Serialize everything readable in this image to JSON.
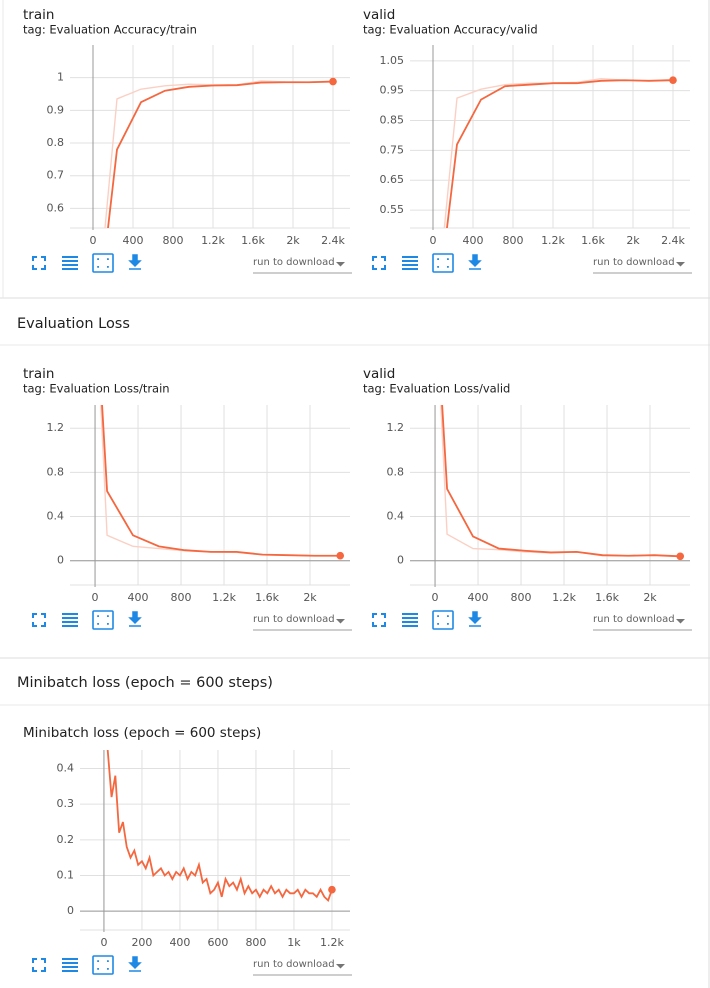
{
  "sections": [
    {
      "title": "Evaluation Loss"
    },
    {
      "title": "Minibatch loss (epoch = 600 steps)"
    }
  ],
  "run_selector_label": "run to download",
  "chart_data": [
    {
      "type": "line",
      "title": "train",
      "subtitle": "tag: Evaluation Accuracy/train",
      "x": [
        0,
        240,
        480,
        720,
        960,
        1200,
        1440,
        1680,
        1920,
        2160,
        2400
      ],
      "series": [
        {
          "color": "#fbd0c4",
          "values": [
            0.145,
            0.935,
            0.965,
            0.975,
            0.98,
            0.978,
            0.978,
            0.99,
            0.987,
            0.986,
            0.99
          ]
        },
        {
          "color": "#f4673f",
          "values": [
            0.14,
            0.78,
            0.925,
            0.96,
            0.972,
            0.976,
            0.977,
            0.985,
            0.986,
            0.986,
            0.988
          ]
        }
      ],
      "xlim": [
        -230,
        2570
      ],
      "ylim": [
        0.54,
        1.1
      ],
      "xticks": [
        0,
        400,
        800,
        {
          "value": 1200,
          "label": "1.2k"
        },
        {
          "value": 1600,
          "label": "1.6k"
        },
        {
          "value": 2000,
          "label": "2k"
        },
        {
          "value": 2400,
          "label": "2.4k"
        }
      ],
      "yticks": [
        0.6,
        0.7,
        0.8,
        0.9,
        1
      ],
      "grid": true
    },
    {
      "type": "line",
      "title": "valid",
      "subtitle": "tag: Evaluation Accuracy/valid",
      "x": [
        0,
        240,
        480,
        720,
        960,
        1200,
        1440,
        1680,
        1920,
        2160,
        2400
      ],
      "series": [
        {
          "color": "#fbd0c4",
          "values": [
            0.1,
            0.925,
            0.955,
            0.97,
            0.975,
            0.975,
            0.978,
            0.99,
            0.985,
            0.983,
            0.988
          ]
        },
        {
          "color": "#f4673f",
          "values": [
            0.1,
            0.77,
            0.92,
            0.965,
            0.97,
            0.975,
            0.975,
            0.983,
            0.985,
            0.983,
            0.985
          ]
        }
      ],
      "xlim": [
        -230,
        2570
      ],
      "ylim": [
        0.49,
        1.103
      ],
      "xticks": [
        0,
        400,
        800,
        {
          "value": 1200,
          "label": "1.2k"
        },
        {
          "value": 1600,
          "label": "1.6k"
        },
        {
          "value": 2000,
          "label": "2k"
        },
        {
          "value": 2400,
          "label": "2.4k"
        }
      ],
      "yticks": [
        0.55,
        0.65,
        0.75,
        0.85,
        0.95,
        1.05
      ],
      "grid": true
    },
    {
      "type": "line",
      "title": "train",
      "subtitle": "tag: Evaluation Loss/train",
      "x": [
        0,
        112,
        353,
        594,
        835,
        1076,
        1317,
        1558,
        1799,
        2040,
        2281
      ],
      "series": [
        {
          "color": "#fbd0c4",
          "values": [
            2.5,
            0.23,
            0.13,
            0.11,
            0.09,
            0.08,
            0.075,
            0.055,
            0.05,
            0.045,
            0.045
          ]
        },
        {
          "color": "#f4673f",
          "values": [
            2.5,
            0.63,
            0.23,
            0.13,
            0.095,
            0.08,
            0.08,
            0.055,
            0.05,
            0.045,
            0.045
          ]
        }
      ],
      "xlim": [
        -233,
        2372
      ],
      "ylim": [
        -0.22,
        1.41
      ],
      "xticks": [
        0,
        400,
        800,
        {
          "value": 1200,
          "label": "1.2k"
        },
        {
          "value": 1600,
          "label": "1.6k"
        },
        {
          "value": 2000,
          "label": "2k"
        }
      ],
      "yticks": [
        0,
        0.4,
        0.8,
        1.2
      ],
      "grid": true
    },
    {
      "type": "line",
      "title": "valid",
      "subtitle": "tag: Evaluation Loss/valid",
      "x": [
        0,
        112,
        353,
        594,
        835,
        1076,
        1317,
        1558,
        1799,
        2040,
        2281
      ],
      "series": [
        {
          "color": "#fbd0c4",
          "values": [
            2.5,
            0.24,
            0.11,
            0.1,
            0.08,
            0.07,
            0.08,
            0.045,
            0.045,
            0.05,
            0.04
          ]
        },
        {
          "color": "#f4673f",
          "values": [
            2.5,
            0.65,
            0.22,
            0.11,
            0.09,
            0.075,
            0.08,
            0.05,
            0.045,
            0.05,
            0.04
          ]
        }
      ],
      "xlim": [
        -233,
        2372
      ],
      "ylim": [
        -0.22,
        1.41
      ],
      "xticks": [
        0,
        400,
        800,
        {
          "value": 1200,
          "label": "1.2k"
        },
        {
          "value": 1600,
          "label": "1.6k"
        },
        {
          "value": 2000,
          "label": "2k"
        }
      ],
      "yticks": [
        0,
        0.4,
        0.8,
        1.2
      ],
      "grid": true
    },
    {
      "type": "line",
      "title": "Minibatch loss (epoch = 600 steps)",
      "x": [
        0,
        20,
        40,
        60,
        80,
        100,
        120,
        140,
        160,
        180,
        200,
        220,
        240,
        260,
        280,
        300,
        320,
        340,
        360,
        380,
        400,
        420,
        440,
        460,
        480,
        500,
        520,
        540,
        560,
        580,
        600,
        620,
        640,
        660,
        680,
        700,
        720,
        740,
        760,
        780,
        800,
        820,
        840,
        860,
        880,
        900,
        920,
        940,
        960,
        980,
        1000,
        1020,
        1040,
        1060,
        1080,
        1100,
        1120,
        1140,
        1160,
        1180,
        1200
      ],
      "series": [
        {
          "color": "#f4673f",
          "values": [
            0.6,
            0.45,
            0.32,
            0.38,
            0.22,
            0.25,
            0.18,
            0.15,
            0.17,
            0.13,
            0.14,
            0.12,
            0.15,
            0.1,
            0.11,
            0.12,
            0.1,
            0.11,
            0.09,
            0.11,
            0.1,
            0.12,
            0.09,
            0.11,
            0.1,
            0.13,
            0.08,
            0.09,
            0.05,
            0.06,
            0.08,
            0.04,
            0.09,
            0.07,
            0.08,
            0.06,
            0.09,
            0.05,
            0.07,
            0.05,
            0.06,
            0.04,
            0.06,
            0.05,
            0.07,
            0.05,
            0.06,
            0.04,
            0.06,
            0.05,
            0.05,
            0.06,
            0.04,
            0.06,
            0.05,
            0.05,
            0.04,
            0.06,
            0.04,
            0.03,
            0.06
          ]
        }
      ],
      "xlim": [
        -126,
        1295
      ],
      "ylim": [
        -0.053,
        0.452
      ],
      "xticks": [
        0,
        200,
        400,
        600,
        800,
        {
          "value": 1000,
          "label": "1k"
        },
        {
          "value": 1200,
          "label": "1.2k"
        }
      ],
      "yticks": [
        0,
        0.1,
        0.2,
        0.3,
        0.4
      ],
      "grid": true
    }
  ]
}
